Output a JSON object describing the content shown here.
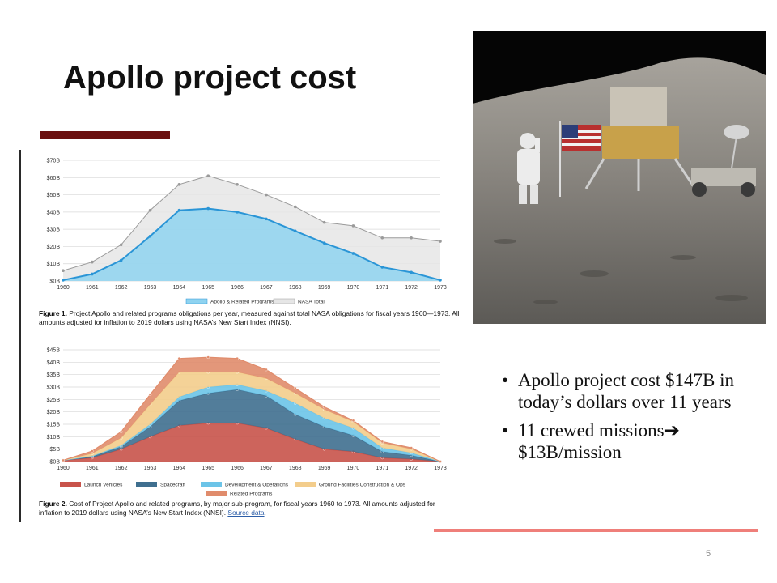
{
  "slide": {
    "title": "Apollo project cost",
    "slide_number": "5",
    "bullets": [
      {
        "text": "Apollo project cost $147B in today’s dollars over 11 years",
        "arrow": ""
      },
      {
        "text": "11 crewed missions",
        "arrow": "➔",
        "after": " $13B/mission"
      }
    ]
  },
  "photo": {
    "subject": "astronaut-on-moon"
  },
  "colors": {
    "title_bar": "#6b0f0f",
    "footer_rule": "#ef7f7a",
    "apollo_fill": "#8fd3f0",
    "apollo_line": "#2a95d6",
    "nasa_fill": "#e6e6e6",
    "nasa_line": "#9a9a9a",
    "launch_vehicles": "#c8534a",
    "spacecraft": "#3f6f8f",
    "dev_ops": "#6cc4e8",
    "ground": "#f3cd8c",
    "related": "#e08c6c"
  },
  "chart_data": [
    {
      "type": "area",
      "x": [
        "1960",
        "1961",
        "1962",
        "1963",
        "1964",
        "1965",
        "1966",
        "1967",
        "1968",
        "1969",
        "1970",
        "1971",
        "1972",
        "1973"
      ],
      "yticks": [
        "$0B",
        "$10B",
        "$20B",
        "$30B",
        "$40B",
        "$50B",
        "$60B",
        "$70B"
      ],
      "ylim": [
        0,
        70
      ],
      "grid": true,
      "legend_position": "bottom",
      "series": [
        {
          "name": "Apollo & Related Programs",
          "values": [
            0.5,
            4,
            12,
            26,
            41,
            42,
            40,
            36,
            29,
            22,
            16,
            8,
            5,
            0.5
          ]
        },
        {
          "name": "NASA Total",
          "values": [
            6,
            11,
            21,
            41,
            56,
            61,
            56,
            50,
            43,
            34,
            32,
            25,
            25,
            23
          ]
        }
      ],
      "caption_bold": "Figure 1.",
      "caption": " Project Apollo and related programs obligations per year, measured against total NASA obligations for fiscal years 1960—1973. All amounts adjusted for inflation to 2019 dollars using NASA’s New Start Index (NNSI)."
    },
    {
      "type": "area",
      "stacked": true,
      "x": [
        "1960",
        "1961",
        "1962",
        "1963",
        "1964",
        "1965",
        "1966",
        "1967",
        "1968",
        "1969",
        "1970",
        "1971",
        "1972",
        "1973"
      ],
      "yticks": [
        "$0B",
        "$5B",
        "$10B",
        "$15B",
        "$20B",
        "$25B",
        "$30B",
        "$35B",
        "$40B",
        "$45B"
      ],
      "ylim": [
        0,
        45
      ],
      "grid": true,
      "legend_position": "bottom",
      "series": [
        {
          "name": "Launch Vehicles",
          "values": [
            0.5,
            1.5,
            5,
            10,
            14.5,
            15.5,
            15.5,
            13.5,
            9,
            5,
            4,
            1.5,
            1,
            0
          ]
        },
        {
          "name": "Spacecraft",
          "values": [
            0,
            0.5,
            1,
            4,
            10,
            12,
            13.5,
            13,
            10,
            9,
            6.5,
            2.5,
            1.5,
            0
          ]
        },
        {
          "name": "Development & Operations",
          "values": [
            0,
            0.2,
            0.5,
            1,
            1.5,
            2.5,
            2,
            2,
            4.5,
            3.5,
            3,
            1.5,
            1,
            0
          ]
        },
        {
          "name": "Ground Facilities Construction & Ops",
          "values": [
            0,
            1,
            3,
            8,
            10,
            6,
            5,
            5,
            4,
            3.5,
            2.5,
            2,
            1.5,
            0
          ]
        },
        {
          "name": "Related Programs",
          "values": [
            0,
            1,
            2.5,
            4,
            5.5,
            6,
            5.5,
            3.5,
            2,
            1,
            0.5,
            0.5,
            0.5,
            0
          ]
        }
      ],
      "caption_bold": "Figure 2.",
      "caption": " Cost of Project Apollo and related programs, by major sub-program, for fiscal years 1960 to 1973. All amounts adjusted for inflation to 2019 dollars using NASA’s New Start Index (NNSI). ",
      "source_link": "Source data"
    }
  ]
}
